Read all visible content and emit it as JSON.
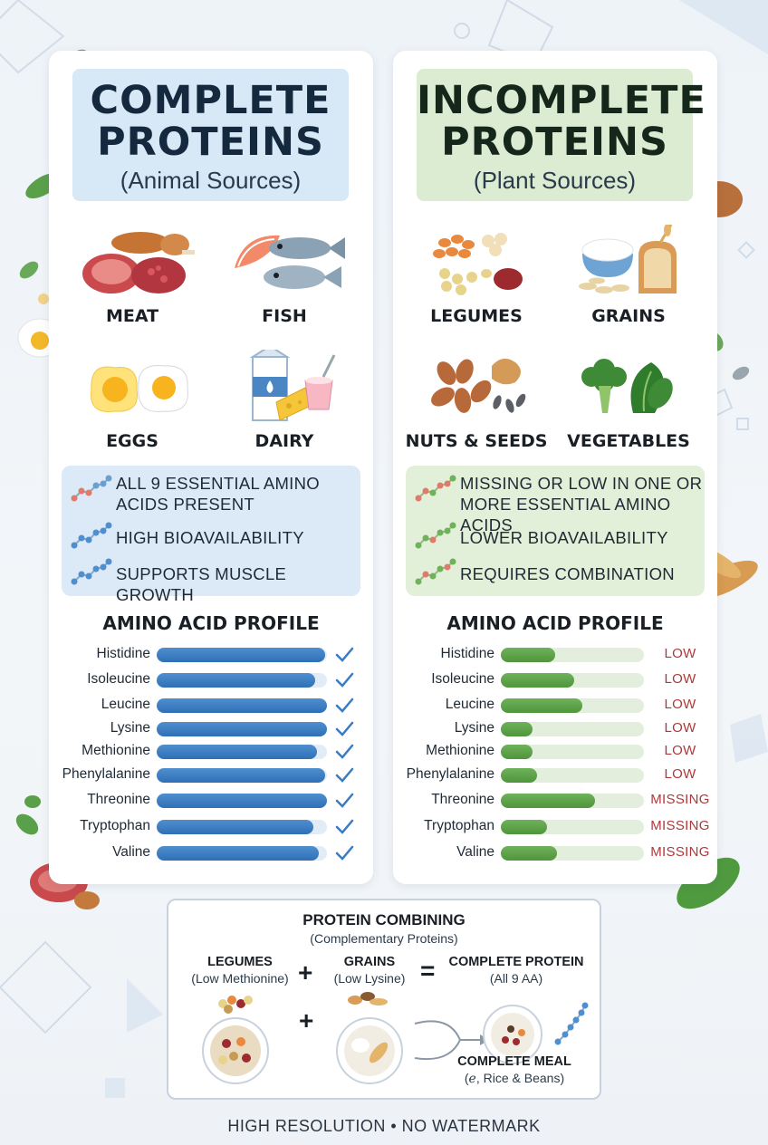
{
  "left": {
    "title": "COMPLETE PROTEINS",
    "subtitle": "(Animal Sources)",
    "foods": [
      {
        "label": "MEAT",
        "icon": "meat-icon"
      },
      {
        "label": "FISH",
        "icon": "fish-icon"
      },
      {
        "label": "EGGS",
        "icon": "eggs-icon"
      },
      {
        "label": "DAIRY",
        "icon": "dairy-icon"
      }
    ],
    "benefits": [
      "ALL 9 ESSENTIAL AMINO ACIDS PRESENT",
      "HIGH BIOAVAILABILITY",
      "SUPPORTS MUSCLE GROWTH"
    ],
    "profile_title": "AMINO ACID PROFILE",
    "aminos": [
      {
        "name": "Histidine",
        "level": 0.99
      },
      {
        "name": "Isoleucine",
        "level": 0.93
      },
      {
        "name": "Leucine",
        "level": 1.0
      },
      {
        "name": "Lysine",
        "level": 1.0
      },
      {
        "name": "Methionine",
        "level": 0.94
      },
      {
        "name": "Phenylalanine",
        "level": 0.99
      },
      {
        "name": "Threonine",
        "level": 1.0
      },
      {
        "name": "Tryptophan",
        "level": 0.92
      },
      {
        "name": "Valine",
        "level": 0.95
      }
    ]
  },
  "right": {
    "title": "INCOMPLETE PROTEINS",
    "subtitle": "(Plant Sources)",
    "foods": [
      {
        "label": "LEGUMES",
        "icon": "legumes-icon"
      },
      {
        "label": "GRAINS",
        "icon": "grains-icon"
      },
      {
        "label": "NUTS & SEEDS",
        "icon": "nuts-seeds-icon"
      },
      {
        "label": "VEGETABLES",
        "icon": "vegetables-icon"
      }
    ],
    "benefits": [
      "MISSING OR LOW IN ONE OR MORE ESSENTIAL AMINO ACIDS",
      "LOWER BIOAVAILABILITY",
      "REQUIRES COMBINATION"
    ],
    "profile_title": "AMINO ACID PROFILE",
    "aminos": [
      {
        "name": "Histidine",
        "level": 0.38,
        "status": "LOW"
      },
      {
        "name": "Isoleucine",
        "level": 0.51,
        "status": "LOW"
      },
      {
        "name": "Leucine",
        "level": 0.57,
        "status": "LOW"
      },
      {
        "name": "Lysine",
        "level": 0.22,
        "status": "LOW"
      },
      {
        "name": "Methionine",
        "level": 0.22,
        "status": "LOW"
      },
      {
        "name": "Phenylalanine",
        "level": 0.25,
        "status": "LOW"
      },
      {
        "name": "Threonine",
        "level": 0.66,
        "status": "MISSING"
      },
      {
        "name": "Tryptophan",
        "level": 0.32,
        "status": "MISSING"
      },
      {
        "name": "Valine",
        "level": 0.39,
        "status": "MISSING"
      }
    ]
  },
  "combining": {
    "title": "PROTEIN COMBINING",
    "subtitle": "(Complementary Proteins)",
    "legumes": "LEGUMES",
    "legumes_note": "(Low Methionine)",
    "grains": "GRAINS",
    "grains_note": "(Low Lysine)",
    "plus": "+",
    "equals": "=",
    "complete": "COMPLETE PROTEIN",
    "complete_note": "(All 9 AA)",
    "meal": "COMPLETE MEAL",
    "meal_note": "(ℯ, Rice & Beans)"
  },
  "footer": "HIGH RESOLUTION  •  NO WATERMARK",
  "colors": {
    "complete_bar": "#3a7cc2",
    "incomplete_bar": "#5ea54a",
    "status_red": "#b0383a",
    "left_header_bg": "#d7e8f6",
    "right_header_bg": "#dcecd3"
  }
}
